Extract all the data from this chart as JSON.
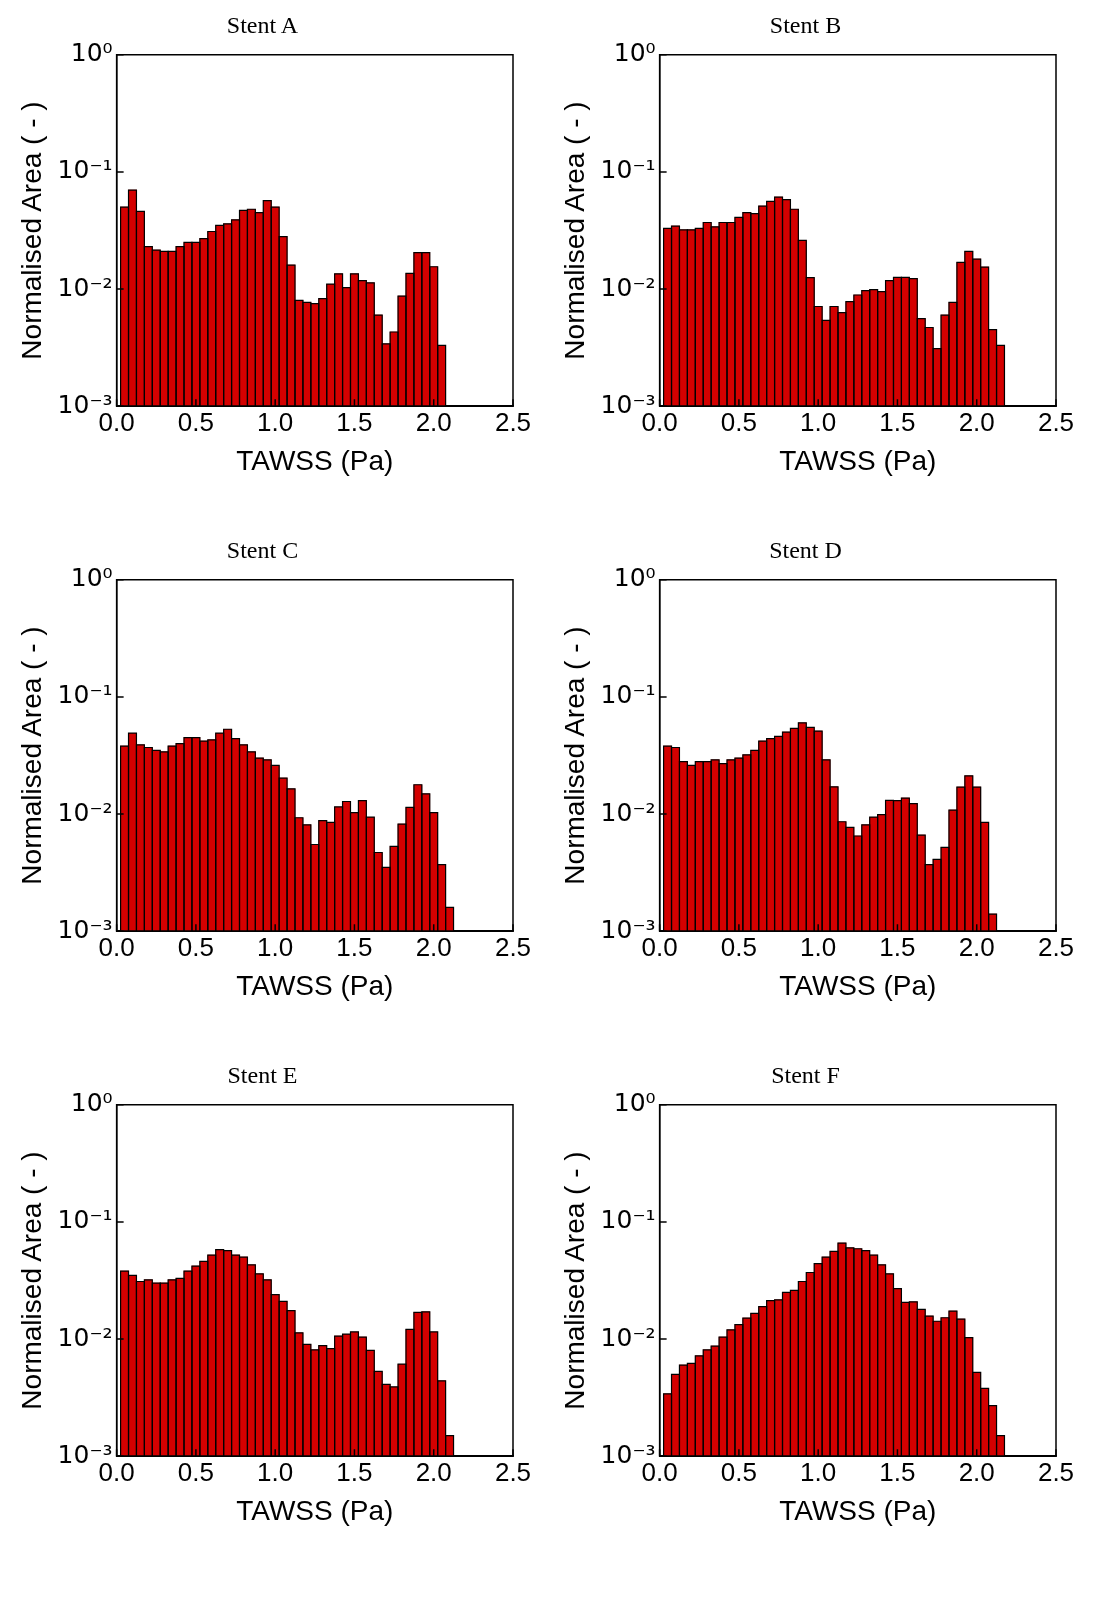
{
  "chart_data": [
    {
      "type": "histogram",
      "title": "Stent A",
      "xlabel": "TAWSS (Pa)",
      "ylabel": "Normalised Area ( - )",
      "color": "#d40000",
      "log": "y",
      "xlim": [
        0,
        2.5
      ],
      "xticks": [
        {
          "value": 0,
          "label": "0.0"
        },
        0.5,
        {
          "value": 1,
          "label": "1.0"
        },
        1.5,
        {
          "value": 2,
          "label": "2.0"
        },
        2.5
      ],
      "ylim": [
        0.001,
        1
      ],
      "yticks": [
        {
          "value": 0.001,
          "label": "10⁻³"
        },
        {
          "value": 0.01,
          "label": "10⁻²"
        },
        {
          "value": 0.1,
          "label": "10⁻¹"
        },
        {
          "value": 1,
          "label": "10⁰"
        }
      ],
      "bins": [
        0.025,
        0.075,
        0.125,
        0.175,
        0.225,
        0.275,
        0.325,
        0.375,
        0.425,
        0.475,
        0.525,
        0.575,
        0.625,
        0.675,
        0.725,
        0.775,
        0.825,
        0.875,
        0.925,
        0.975,
        1.025,
        1.075,
        1.125,
        1.175,
        1.225,
        1.275,
        1.325,
        1.375,
        1.425,
        1.475,
        1.525,
        1.575,
        1.625,
        1.675,
        1.725,
        1.775,
        1.825,
        1.875,
        1.925,
        1.975,
        2.025,
        2.075
      ],
      "values": [
        0.05,
        0.07,
        0.046,
        0.023,
        0.0215,
        0.021,
        0.021,
        0.023,
        0.025,
        0.025,
        0.027,
        0.031,
        0.035,
        0.036,
        0.039,
        0.047,
        0.048,
        0.045,
        0.057,
        0.05,
        0.028,
        0.016,
        0.008,
        0.0077,
        0.0075,
        0.0083,
        0.011,
        0.0135,
        0.0103,
        0.0135,
        0.0118,
        0.0113,
        0.006,
        0.0034,
        0.0043,
        0.0087,
        0.0136,
        0.0205,
        0.0205,
        0.0155,
        0.0033
      ]
    },
    {
      "type": "histogram",
      "title": "Stent B",
      "xlabel": "TAWSS (Pa)",
      "ylabel": "Normalised Area ( - )",
      "color": "#d40000",
      "log": "y",
      "xlim": [
        0,
        2.5
      ],
      "xticks": [
        {
          "value": 0,
          "label": "0.0"
        },
        0.5,
        {
          "value": 1,
          "label": "1.0"
        },
        1.5,
        {
          "value": 2,
          "label": "2.0"
        },
        2.5
      ],
      "ylim": [
        0.001,
        1
      ],
      "yticks": [
        {
          "value": 0.001,
          "label": "10⁻³"
        },
        {
          "value": 0.01,
          "label": "10⁻²"
        },
        {
          "value": 0.1,
          "label": "10⁻¹"
        },
        {
          "value": 1,
          "label": "10⁰"
        }
      ],
      "bins": [
        0.025,
        0.075,
        0.125,
        0.175,
        0.225,
        0.275,
        0.325,
        0.375,
        0.425,
        0.475,
        0.525,
        0.575,
        0.625,
        0.675,
        0.725,
        0.775,
        0.825,
        0.875,
        0.925,
        0.975,
        1.025,
        1.075,
        1.125,
        1.175,
        1.225,
        1.275,
        1.325,
        1.375,
        1.425,
        1.475,
        1.525,
        1.575,
        1.625,
        1.675,
        1.725,
        1.775,
        1.825,
        1.875,
        1.925,
        1.975,
        2.025,
        2.075,
        2.125,
        2.175
      ],
      "values": [
        0.033,
        0.0345,
        0.032,
        0.032,
        0.033,
        0.037,
        0.034,
        0.037,
        0.037,
        0.041,
        0.045,
        0.044,
        0.051,
        0.056,
        0.061,
        0.058,
        0.048,
        0.026,
        0.0125,
        0.0071,
        0.0054,
        0.0071,
        0.0063,
        0.0078,
        0.0089,
        0.0097,
        0.0099,
        0.0095,
        0.0118,
        0.0126,
        0.0126,
        0.0123,
        0.0056,
        0.0047,
        0.0031,
        0.006,
        0.0077,
        0.0169,
        0.021,
        0.018,
        0.0154,
        0.0045,
        0.0033
      ]
    },
    {
      "type": "histogram",
      "title": "Stent C",
      "xlabel": "TAWSS (Pa)",
      "ylabel": "Normalised Area ( - )",
      "color": "#d40000",
      "log": "y",
      "xlim": [
        0,
        2.5
      ],
      "xticks": [
        {
          "value": 0,
          "label": "0.0"
        },
        0.5,
        {
          "value": 1,
          "label": "1.0"
        },
        1.5,
        {
          "value": 2,
          "label": "2.0"
        },
        2.5
      ],
      "ylim": [
        0.001,
        1
      ],
      "yticks": [
        {
          "value": 0.001,
          "label": "10⁻³"
        },
        {
          "value": 0.01,
          "label": "10⁻²"
        },
        {
          "value": 0.1,
          "label": "10⁻¹"
        },
        {
          "value": 1,
          "label": "10⁰"
        }
      ],
      "bins": [
        0.025,
        0.075,
        0.125,
        0.175,
        0.225,
        0.275,
        0.325,
        0.375,
        0.425,
        0.475,
        0.525,
        0.575,
        0.625,
        0.675,
        0.725,
        0.775,
        0.825,
        0.875,
        0.925,
        0.975,
        1.025,
        1.075,
        1.125,
        1.175,
        1.225,
        1.275,
        1.325,
        1.375,
        1.425,
        1.475,
        1.525,
        1.575,
        1.625,
        1.675,
        1.725,
        1.775,
        1.825,
        1.875,
        1.925,
        1.975,
        2.025,
        2.075,
        2.125
      ],
      "values": [
        0.038,
        0.049,
        0.039,
        0.037,
        0.035,
        0.034,
        0.038,
        0.04,
        0.045,
        0.045,
        0.042,
        0.043,
        0.049,
        0.053,
        0.044,
        0.039,
        0.034,
        0.03,
        0.029,
        0.026,
        0.0203,
        0.0164,
        0.0093,
        0.0081,
        0.0055,
        0.0088,
        0.0085,
        0.0115,
        0.0128,
        0.0103,
        0.013,
        0.0094,
        0.0047,
        0.0035,
        0.0053,
        0.0082,
        0.0114,
        0.0178,
        0.0149,
        0.0103,
        0.0037,
        0.0016
      ]
    },
    {
      "type": "histogram",
      "title": "Stent D",
      "xlabel": "TAWSS (Pa)",
      "ylabel": "Normalised Area ( - )",
      "color": "#d40000",
      "log": "y",
      "xlim": [
        0,
        2.5
      ],
      "xticks": [
        {
          "value": 0,
          "label": "0.0"
        },
        0.5,
        {
          "value": 1,
          "label": "1.0"
        },
        1.5,
        {
          "value": 2,
          "label": "2.0"
        },
        2.5
      ],
      "ylim": [
        0.001,
        1
      ],
      "yticks": [
        {
          "value": 0.001,
          "label": "10⁻³"
        },
        {
          "value": 0.01,
          "label": "10⁻²"
        },
        {
          "value": 0.1,
          "label": "10⁻¹"
        },
        {
          "value": 1,
          "label": "10⁰"
        }
      ],
      "bins": [
        0.025,
        0.075,
        0.125,
        0.175,
        0.225,
        0.275,
        0.325,
        0.375,
        0.425,
        0.475,
        0.525,
        0.575,
        0.625,
        0.675,
        0.725,
        0.775,
        0.825,
        0.875,
        0.925,
        0.975,
        1.025,
        1.075,
        1.125,
        1.175,
        1.225,
        1.275,
        1.325,
        1.375,
        1.425,
        1.475,
        1.525,
        1.575,
        1.625,
        1.675,
        1.725,
        1.775,
        1.825,
        1.875,
        1.925,
        1.975,
        2.025,
        2.075,
        2.125
      ],
      "values": [
        0.038,
        0.037,
        0.028,
        0.026,
        0.028,
        0.028,
        0.029,
        0.027,
        0.029,
        0.03,
        0.032,
        0.035,
        0.042,
        0.044,
        0.046,
        0.05,
        0.054,
        0.06,
        0.055,
        0.051,
        0.029,
        0.0171,
        0.0086,
        0.0077,
        0.0065,
        0.0081,
        0.0094,
        0.0099,
        0.0131,
        0.013,
        0.0137,
        0.0123,
        0.0066,
        0.0037,
        0.0041,
        0.0052,
        0.0108,
        0.017,
        0.0212,
        0.017,
        0.0085,
        0.0014
      ]
    },
    {
      "type": "histogram",
      "title": "Stent E",
      "xlabel": "TAWSS (Pa)",
      "ylabel": "Normalised Area ( - )",
      "color": "#d40000",
      "log": "y",
      "xlim": [
        0,
        2.5
      ],
      "xticks": [
        {
          "value": 0,
          "label": "0.0"
        },
        0.5,
        {
          "value": 1,
          "label": "1.0"
        },
        1.5,
        {
          "value": 2,
          "label": "2.0"
        },
        2.5
      ],
      "ylim": [
        0.001,
        1
      ],
      "yticks": [
        {
          "value": 0.001,
          "label": "10⁻³"
        },
        {
          "value": 0.01,
          "label": "10⁻²"
        },
        {
          "value": 0.1,
          "label": "10⁻¹"
        },
        {
          "value": 1,
          "label": "10⁰"
        }
      ],
      "bins": [
        0.025,
        0.075,
        0.125,
        0.175,
        0.225,
        0.275,
        0.325,
        0.375,
        0.425,
        0.475,
        0.525,
        0.575,
        0.625,
        0.675,
        0.725,
        0.775,
        0.825,
        0.875,
        0.925,
        0.975,
        1.025,
        1.075,
        1.125,
        1.175,
        1.225,
        1.275,
        1.325,
        1.375,
        1.425,
        1.475,
        1.525,
        1.575,
        1.625,
        1.675,
        1.725,
        1.775,
        1.825,
        1.875,
        1.925,
        1.975,
        2.025,
        2.075,
        2.125
      ],
      "values": [
        0.038,
        0.035,
        0.031,
        0.032,
        0.03,
        0.03,
        0.032,
        0.033,
        0.038,
        0.042,
        0.046,
        0.052,
        0.058,
        0.057,
        0.052,
        0.05,
        0.043,
        0.036,
        0.032,
        0.024,
        0.021,
        0.0175,
        0.0113,
        0.009,
        0.0081,
        0.0088,
        0.0083,
        0.0106,
        0.011,
        0.0115,
        0.0104,
        0.008,
        0.0053,
        0.0041,
        0.0039,
        0.0061,
        0.0121,
        0.0169,
        0.0171,
        0.0115,
        0.0044,
        0.0015
      ]
    },
    {
      "type": "histogram",
      "title": "Stent F",
      "xlabel": "TAWSS (Pa)",
      "ylabel": "Normalised Area ( - )",
      "color": "#d40000",
      "log": "y",
      "xlim": [
        0,
        2.5
      ],
      "xticks": [
        {
          "value": 0,
          "label": "0.0"
        },
        0.5,
        {
          "value": 1,
          "label": "1.0"
        },
        1.5,
        {
          "value": 2,
          "label": "2.0"
        },
        2.5
      ],
      "ylim": [
        0.001,
        1
      ],
      "yticks": [
        {
          "value": 0.001,
          "label": "10⁻³"
        },
        {
          "value": 0.01,
          "label": "10⁻²"
        },
        {
          "value": 0.1,
          "label": "10⁻¹"
        },
        {
          "value": 1,
          "label": "10⁰"
        }
      ],
      "bins": [
        0.025,
        0.075,
        0.125,
        0.175,
        0.225,
        0.275,
        0.325,
        0.375,
        0.425,
        0.475,
        0.525,
        0.575,
        0.625,
        0.675,
        0.725,
        0.775,
        0.825,
        0.875,
        0.925,
        0.975,
        1.025,
        1.075,
        1.125,
        1.175,
        1.225,
        1.275,
        1.325,
        1.375,
        1.425,
        1.475,
        1.525,
        1.575,
        1.625,
        1.675,
        1.725,
        1.775,
        1.825,
        1.875,
        1.925,
        1.975,
        2.025,
        2.075,
        2.125,
        2.175
      ],
      "values": [
        0.0034,
        0.005,
        0.006,
        0.0062,
        0.0072,
        0.0081,
        0.0087,
        0.0104,
        0.012,
        0.0133,
        0.0151,
        0.0166,
        0.0189,
        0.0213,
        0.0216,
        0.025,
        0.026,
        0.031,
        0.037,
        0.044,
        0.05,
        0.056,
        0.066,
        0.06,
        0.059,
        0.057,
        0.052,
        0.043,
        0.036,
        0.027,
        0.0206,
        0.0208,
        0.0179,
        0.0157,
        0.0142,
        0.0152,
        0.0173,
        0.0148,
        0.0103,
        0.0052,
        0.0038,
        0.0027,
        0.0015
      ]
    }
  ]
}
